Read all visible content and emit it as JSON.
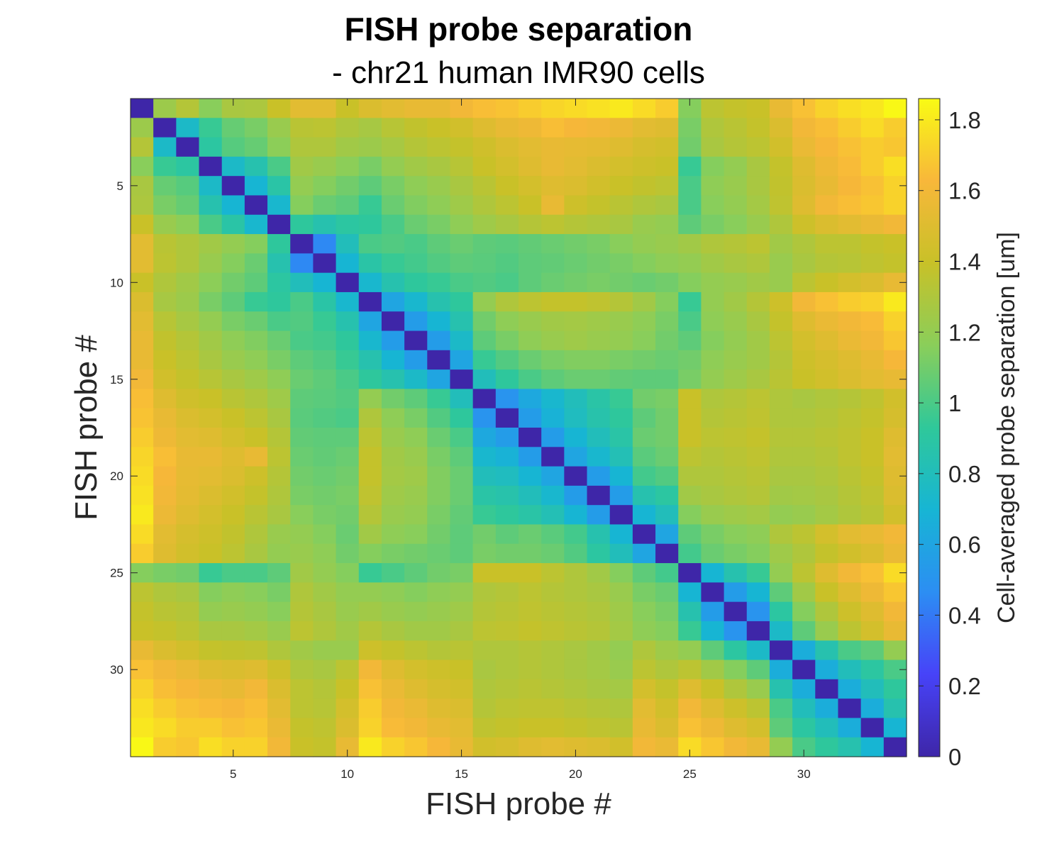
{
  "chart_data": {
    "type": "heatmap",
    "title": "FISH probe separation",
    "subtitle": "- chr21 human IMR90 cells",
    "xlabel": "FISH probe #",
    "ylabel": "FISH probe #",
    "n": 34,
    "x_ticks": [
      5,
      10,
      15,
      20,
      25,
      30
    ],
    "y_ticks": [
      5,
      10,
      15,
      20,
      25,
      30
    ],
    "colorbar": {
      "label": "Cell-averaged probe separation [um]",
      "ticks": [
        "0",
        "0.2",
        "0.4",
        "0.6",
        "0.8",
        "1",
        "1.2",
        "1.4",
        "1.6",
        "1.8"
      ],
      "clim": [
        0,
        1.86
      ],
      "colormap": "parula",
      "stops": [
        "#3e26a8",
        "#4743f8",
        "#2c8ef3",
        "#17b5d4",
        "#2fc89a",
        "#8ace5a",
        "#c8c128",
        "#f8b73a",
        "#f9fb14"
      ]
    },
    "values": [
      [
        0.0,
        1.23,
        1.32,
        1.16,
        1.28,
        1.29,
        1.4,
        1.52,
        1.52,
        1.4,
        1.48,
        1.52,
        1.55,
        1.55,
        1.6,
        1.65,
        1.67,
        1.7,
        1.73,
        1.75,
        1.77,
        1.8,
        1.75,
        1.7,
        1.15,
        1.35,
        1.38,
        1.4,
        1.55,
        1.66,
        1.72,
        1.76,
        1.79,
        1.85
      ],
      [
        1.23,
        0.0,
        0.75,
        0.95,
        1.07,
        1.12,
        1.22,
        1.34,
        1.35,
        1.3,
        1.27,
        1.33,
        1.37,
        1.4,
        1.44,
        1.5,
        1.55,
        1.58,
        1.65,
        1.62,
        1.6,
        1.57,
        1.52,
        1.5,
        1.12,
        1.3,
        1.34,
        1.38,
        1.48,
        1.6,
        1.65,
        1.7,
        1.75,
        1.7
      ],
      [
        1.32,
        0.75,
        0.0,
        0.9,
        1.03,
        1.07,
        1.17,
        1.3,
        1.3,
        1.25,
        1.23,
        1.27,
        1.32,
        1.35,
        1.38,
        1.43,
        1.48,
        1.52,
        1.55,
        1.54,
        1.53,
        1.5,
        1.46,
        1.44,
        1.1,
        1.28,
        1.32,
        1.35,
        1.44,
        1.56,
        1.62,
        1.66,
        1.7,
        1.68
      ],
      [
        1.16,
        0.95,
        0.9,
        0.0,
        0.75,
        0.85,
        1.0,
        1.25,
        1.22,
        1.17,
        1.12,
        1.2,
        1.25,
        1.28,
        1.33,
        1.4,
        1.45,
        1.5,
        1.55,
        1.52,
        1.48,
        1.45,
        1.42,
        1.4,
        0.95,
        1.15,
        1.2,
        1.28,
        1.38,
        1.5,
        1.58,
        1.64,
        1.7,
        1.76
      ],
      [
        1.28,
        1.07,
        1.03,
        0.75,
        0.0,
        0.7,
        0.88,
        1.2,
        1.15,
        1.1,
        1.05,
        1.12,
        1.18,
        1.22,
        1.28,
        1.34,
        1.4,
        1.45,
        1.5,
        1.48,
        1.44,
        1.4,
        1.37,
        1.35,
        1.0,
        1.18,
        1.22,
        1.28,
        1.37,
        1.48,
        1.55,
        1.62,
        1.66,
        1.72
      ],
      [
        1.29,
        1.12,
        1.07,
        0.85,
        0.7,
        0.0,
        0.72,
        1.15,
        1.08,
        1.05,
        0.95,
        1.08,
        1.14,
        1.18,
        1.24,
        1.3,
        1.35,
        1.4,
        1.55,
        1.42,
        1.38,
        1.34,
        1.3,
        1.28,
        1.0,
        1.16,
        1.2,
        1.26,
        1.36,
        1.5,
        1.6,
        1.65,
        1.68,
        1.72
      ],
      [
        1.4,
        1.22,
        1.17,
        1.0,
        0.88,
        0.72,
        0.0,
        0.92,
        0.85,
        0.9,
        0.92,
        1.0,
        1.08,
        1.12,
        1.18,
        1.24,
        1.28,
        1.32,
        1.35,
        1.32,
        1.3,
        1.28,
        1.22,
        1.2,
        1.05,
        1.12,
        1.16,
        1.22,
        1.3,
        1.42,
        1.48,
        1.52,
        1.56,
        1.6
      ],
      [
        1.52,
        1.34,
        1.3,
        1.25,
        1.2,
        1.15,
        0.92,
        0.0,
        0.45,
        0.8,
        1.0,
        1.02,
        1.0,
        1.05,
        1.08,
        1.05,
        1.04,
        1.06,
        1.08,
        1.1,
        1.12,
        1.16,
        1.2,
        1.22,
        1.25,
        1.3,
        1.32,
        1.35,
        1.25,
        1.3,
        1.35,
        1.35,
        1.38,
        1.4
      ],
      [
        1.52,
        1.35,
        1.3,
        1.22,
        1.15,
        1.08,
        0.85,
        0.45,
        0.0,
        0.7,
        0.88,
        0.95,
        0.98,
        1.02,
        1.05,
        1.04,
        1.02,
        1.05,
        1.06,
        1.08,
        1.1,
        1.12,
        1.15,
        1.18,
        1.2,
        1.25,
        1.28,
        1.3,
        1.22,
        1.28,
        1.32,
        1.33,
        1.36,
        1.38
      ],
      [
        1.4,
        1.3,
        1.25,
        1.17,
        1.1,
        1.05,
        0.9,
        0.8,
        0.7,
        0.0,
        0.72,
        0.85,
        0.92,
        0.95,
        1.0,
        1.02,
        1.0,
        1.05,
        1.08,
        1.1,
        1.12,
        1.1,
        1.08,
        1.1,
        1.15,
        1.2,
        1.22,
        1.25,
        1.22,
        1.35,
        1.4,
        1.45,
        1.48,
        1.55
      ],
      [
        1.48,
        1.27,
        1.23,
        1.12,
        1.05,
        0.95,
        0.92,
        1.0,
        0.88,
        0.72,
        0.0,
        0.6,
        0.72,
        0.85,
        0.92,
        1.2,
        1.3,
        1.35,
        1.38,
        1.38,
        1.36,
        1.32,
        1.25,
        1.15,
        0.95,
        1.2,
        1.25,
        1.32,
        1.42,
        1.6,
        1.66,
        1.7,
        1.72,
        1.8
      ],
      [
        1.52,
        1.33,
        1.27,
        1.2,
        1.12,
        1.08,
        1.0,
        1.02,
        0.95,
        0.85,
        0.6,
        0.0,
        0.55,
        0.7,
        0.85,
        1.1,
        1.18,
        1.22,
        1.25,
        1.26,
        1.24,
        1.22,
        1.18,
        1.12,
        1.0,
        1.18,
        1.22,
        1.28,
        1.38,
        1.5,
        1.56,
        1.6,
        1.64,
        1.72
      ],
      [
        1.55,
        1.37,
        1.32,
        1.25,
        1.18,
        1.14,
        1.08,
        1.0,
        0.98,
        0.92,
        0.72,
        0.55,
        0.0,
        0.55,
        0.75,
        1.05,
        1.12,
        1.18,
        1.22,
        1.24,
        1.22,
        1.2,
        1.16,
        1.1,
        1.05,
        1.15,
        1.2,
        1.25,
        1.35,
        1.45,
        1.5,
        1.56,
        1.6,
        1.68
      ],
      [
        1.55,
        1.4,
        1.35,
        1.28,
        1.22,
        1.18,
        1.12,
        1.05,
        1.02,
        0.95,
        0.85,
        0.7,
        0.55,
        0.0,
        0.6,
        0.95,
        1.02,
        1.08,
        1.12,
        1.14,
        1.14,
        1.12,
        1.1,
        1.08,
        1.1,
        1.18,
        1.22,
        1.25,
        1.32,
        1.42,
        1.46,
        1.5,
        1.55,
        1.62
      ],
      [
        1.6,
        1.44,
        1.38,
        1.33,
        1.28,
        1.24,
        1.18,
        1.08,
        1.05,
        1.0,
        0.92,
        0.85,
        0.75,
        0.6,
        0.0,
        0.8,
        0.92,
        1.0,
        1.05,
        1.08,
        1.08,
        1.06,
        1.05,
        1.05,
        1.12,
        1.2,
        1.24,
        1.28,
        1.34,
        1.4,
        1.44,
        1.48,
        1.52,
        1.55
      ],
      [
        1.65,
        1.5,
        1.43,
        1.4,
        1.34,
        1.3,
        1.24,
        1.05,
        1.04,
        1.02,
        1.2,
        1.1,
        1.05,
        0.95,
        0.8,
        0.0,
        0.5,
        0.62,
        0.72,
        0.8,
        0.88,
        0.95,
        1.1,
        1.12,
        1.4,
        1.3,
        1.32,
        1.35,
        1.3,
        1.28,
        1.3,
        1.32,
        1.36,
        1.44
      ],
      [
        1.67,
        1.55,
        1.48,
        1.45,
        1.4,
        1.35,
        1.28,
        1.04,
        1.02,
        1.0,
        1.3,
        1.18,
        1.12,
        1.02,
        0.92,
        0.5,
        0.0,
        0.55,
        0.68,
        0.78,
        0.86,
        0.92,
        1.05,
        1.1,
        1.4,
        1.32,
        1.34,
        1.36,
        1.3,
        1.3,
        1.32,
        1.35,
        1.38,
        1.46
      ],
      [
        1.7,
        1.58,
        1.52,
        1.5,
        1.45,
        1.4,
        1.32,
        1.06,
        1.05,
        1.05,
        1.35,
        1.22,
        1.18,
        1.08,
        1.0,
        0.62,
        0.55,
        0.0,
        0.55,
        0.7,
        0.8,
        0.88,
        1.08,
        1.1,
        1.4,
        1.35,
        1.36,
        1.38,
        1.32,
        1.32,
        1.34,
        1.36,
        1.4,
        1.5
      ],
      [
        1.73,
        1.65,
        1.55,
        1.55,
        1.5,
        1.55,
        1.35,
        1.08,
        1.06,
        1.08,
        1.38,
        1.25,
        1.22,
        1.12,
        1.05,
        0.72,
        0.68,
        0.55,
        0.0,
        0.6,
        0.72,
        0.82,
        1.04,
        1.08,
        1.35,
        1.32,
        1.34,
        1.36,
        1.3,
        1.3,
        1.32,
        1.36,
        1.4,
        1.52
      ],
      [
        1.75,
        1.62,
        1.54,
        1.52,
        1.48,
        1.42,
        1.32,
        1.1,
        1.08,
        1.1,
        1.38,
        1.26,
        1.24,
        1.14,
        1.08,
        0.8,
        0.78,
        0.7,
        0.6,
        0.0,
        0.55,
        0.7,
        0.98,
        1.02,
        1.3,
        1.3,
        1.32,
        1.34,
        1.28,
        1.28,
        1.3,
        1.34,
        1.38,
        1.5
      ],
      [
        1.77,
        1.6,
        1.53,
        1.48,
        1.44,
        1.38,
        1.3,
        1.12,
        1.1,
        1.12,
        1.36,
        1.24,
        1.22,
        1.14,
        1.08,
        0.88,
        0.86,
        0.8,
        0.72,
        0.55,
        0.0,
        0.55,
        0.85,
        0.9,
        1.25,
        1.28,
        1.3,
        1.32,
        1.25,
        1.26,
        1.28,
        1.32,
        1.36,
        1.48
      ],
      [
        1.8,
        1.57,
        1.5,
        1.45,
        1.4,
        1.34,
        1.28,
        1.16,
        1.12,
        1.1,
        1.32,
        1.22,
        1.2,
        1.12,
        1.06,
        0.95,
        0.92,
        0.88,
        0.82,
        0.7,
        0.55,
        0.0,
        0.7,
        0.8,
        1.15,
        1.22,
        1.24,
        1.26,
        1.2,
        1.22,
        1.26,
        1.3,
        1.34,
        1.44
      ],
      [
        1.75,
        1.52,
        1.46,
        1.42,
        1.37,
        1.3,
        1.22,
        1.2,
        1.15,
        1.08,
        1.25,
        1.18,
        1.16,
        1.1,
        1.05,
        1.1,
        1.05,
        1.08,
        1.04,
        0.98,
        0.85,
        0.7,
        0.0,
        0.6,
        1.05,
        1.12,
        1.16,
        1.18,
        1.3,
        1.35,
        1.45,
        1.52,
        1.55,
        1.6
      ],
      [
        1.7,
        1.5,
        1.44,
        1.4,
        1.35,
        1.28,
        1.2,
        1.22,
        1.18,
        1.1,
        1.15,
        1.12,
        1.1,
        1.08,
        1.05,
        1.12,
        1.1,
        1.1,
        1.08,
        1.02,
        0.9,
        0.8,
        0.6,
        0.0,
        0.98,
        1.08,
        1.12,
        1.15,
        1.24,
        1.3,
        1.38,
        1.44,
        1.48,
        1.56
      ],
      [
        1.15,
        1.12,
        1.1,
        0.95,
        1.0,
        1.0,
        1.05,
        1.25,
        1.2,
        1.15,
        0.95,
        1.0,
        1.05,
        1.1,
        1.12,
        1.4,
        1.4,
        1.4,
        1.35,
        1.3,
        1.25,
        1.15,
        1.05,
        0.98,
        0.0,
        0.7,
        0.85,
        0.95,
        1.2,
        1.35,
        1.5,
        1.6,
        1.66,
        1.75
      ],
      [
        1.35,
        1.3,
        1.28,
        1.15,
        1.18,
        1.16,
        1.12,
        1.3,
        1.25,
        1.2,
        1.2,
        1.18,
        1.15,
        1.18,
        1.2,
        1.3,
        1.32,
        1.35,
        1.32,
        1.3,
        1.28,
        1.22,
        1.12,
        1.08,
        0.7,
        0.0,
        0.55,
        0.7,
        1.05,
        1.25,
        1.4,
        1.5,
        1.58,
        1.68
      ],
      [
        1.38,
        1.34,
        1.32,
        1.2,
        1.22,
        1.2,
        1.16,
        1.32,
        1.28,
        1.22,
        1.25,
        1.22,
        1.2,
        1.22,
        1.24,
        1.32,
        1.34,
        1.36,
        1.34,
        1.32,
        1.3,
        1.24,
        1.16,
        1.12,
        0.85,
        0.55,
        0.0,
        0.5,
        0.9,
        1.15,
        1.3,
        1.42,
        1.5,
        1.6
      ],
      [
        1.4,
        1.38,
        1.35,
        1.28,
        1.28,
        1.26,
        1.22,
        1.35,
        1.3,
        1.25,
        1.32,
        1.28,
        1.25,
        1.25,
        1.28,
        1.35,
        1.36,
        1.38,
        1.36,
        1.34,
        1.32,
        1.26,
        1.18,
        1.15,
        0.95,
        0.7,
        0.5,
        0.0,
        0.75,
        1.05,
        1.22,
        1.35,
        1.45,
        1.55
      ],
      [
        1.55,
        1.48,
        1.44,
        1.38,
        1.37,
        1.36,
        1.3,
        1.25,
        1.22,
        1.22,
        1.42,
        1.38,
        1.35,
        1.32,
        1.34,
        1.3,
        1.3,
        1.32,
        1.3,
        1.28,
        1.25,
        1.2,
        1.3,
        1.24,
        1.2,
        1.05,
        0.9,
        0.75,
        0.0,
        0.65,
        0.85,
        1.0,
        1.05,
        1.2
      ],
      [
        1.66,
        1.6,
        1.56,
        1.5,
        1.48,
        1.5,
        1.42,
        1.3,
        1.28,
        1.35,
        1.6,
        1.5,
        1.45,
        1.42,
        1.4,
        1.28,
        1.3,
        1.32,
        1.3,
        1.28,
        1.26,
        1.22,
        1.35,
        1.3,
        1.35,
        1.25,
        1.15,
        1.05,
        0.65,
        0.0,
        0.65,
        0.8,
        0.9,
        1.0
      ],
      [
        1.72,
        1.65,
        1.62,
        1.58,
        1.55,
        1.6,
        1.48,
        1.35,
        1.32,
        1.4,
        1.66,
        1.56,
        1.5,
        1.46,
        1.44,
        1.3,
        1.32,
        1.34,
        1.32,
        1.3,
        1.28,
        1.26,
        1.45,
        1.38,
        1.5,
        1.4,
        1.3,
        1.22,
        0.85,
        0.65,
        0.0,
        0.65,
        0.8,
        0.92
      ],
      [
        1.76,
        1.7,
        1.66,
        1.64,
        1.62,
        1.65,
        1.52,
        1.35,
        1.33,
        1.45,
        1.7,
        1.6,
        1.56,
        1.5,
        1.48,
        1.32,
        1.35,
        1.36,
        1.36,
        1.34,
        1.32,
        1.3,
        1.52,
        1.44,
        1.6,
        1.5,
        1.42,
        1.35,
        1.0,
        0.8,
        0.65,
        0.0,
        0.65,
        0.85
      ],
      [
        1.79,
        1.75,
        1.7,
        1.7,
        1.66,
        1.68,
        1.56,
        1.38,
        1.36,
        1.48,
        1.72,
        1.64,
        1.6,
        1.55,
        1.52,
        1.36,
        1.38,
        1.4,
        1.4,
        1.38,
        1.36,
        1.34,
        1.55,
        1.48,
        1.66,
        1.58,
        1.5,
        1.45,
        1.05,
        0.9,
        0.8,
        0.65,
        0.0,
        0.7
      ],
      [
        1.85,
        1.7,
        1.68,
        1.76,
        1.72,
        1.72,
        1.6,
        1.4,
        1.38,
        1.55,
        1.8,
        1.72,
        1.68,
        1.62,
        1.55,
        1.44,
        1.46,
        1.5,
        1.52,
        1.5,
        1.48,
        1.44,
        1.6,
        1.56,
        1.75,
        1.68,
        1.6,
        1.55,
        1.2,
        1.0,
        0.92,
        0.85,
        0.7,
        0.0
      ]
    ]
  }
}
